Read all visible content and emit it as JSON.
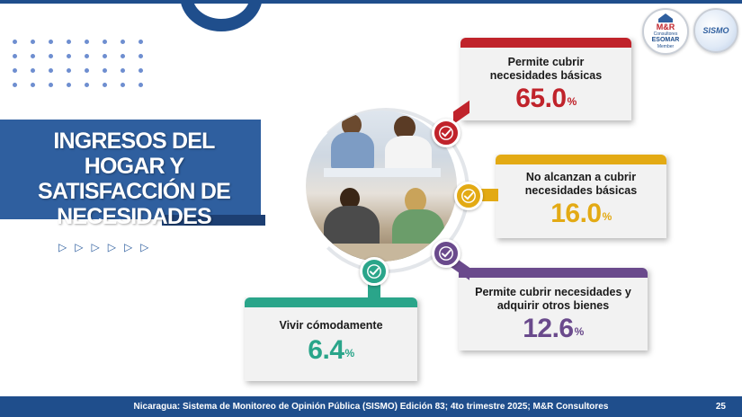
{
  "slide": {
    "title": "INGRESOS DEL HOGAR Y SATISFACCIÓN DE NECESIDADES",
    "footer": "Nicaragua: Sistema de Monitoreo de Opinión Pública (SISMO) Edición 83; 4to trimestre 2025; M&R Consultores",
    "page_number": "25"
  },
  "logos": {
    "mr": {
      "name": "M&R",
      "sub": "Consultores",
      "esomar": "ESOMAR",
      "member": "Member"
    },
    "sismo": {
      "name": "SISMO"
    }
  },
  "cards": [
    {
      "label": "Permite cubrir necesidades básicas",
      "value": "65.0",
      "unit": "%",
      "color": "#c0232b",
      "icon": "check-circle-icon"
    },
    {
      "label": "No alcanzan a cubrir necesidades básicas",
      "value": "16.0",
      "unit": "%",
      "color": "#e3aa14",
      "icon": "check-circle-icon"
    },
    {
      "label": "Permite cubrir necesidades y adquirir otros bienes",
      "value": "12.6",
      "unit": "%",
      "color": "#6a4a8c",
      "icon": "check-circle-icon"
    },
    {
      "label": "Vivir cómodamente",
      "value": "6.4",
      "unit": "%",
      "color": "#2aa58a",
      "icon": "check-circle-icon"
    }
  ],
  "decor": {
    "dot_color": "#6e8ed0",
    "arrow_glyph": "▷",
    "arrow_count": 6
  }
}
